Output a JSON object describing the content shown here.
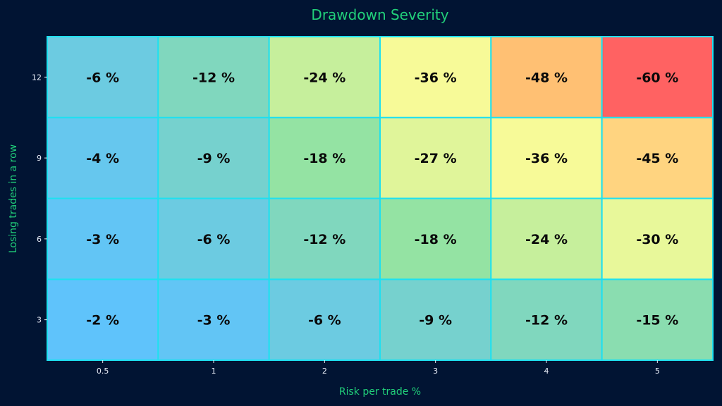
{
  "chart_data": {
    "type": "heatmap",
    "title": "Drawdown Severity",
    "xlabel": "Risk per trade %",
    "ylabel": "Losing trades in a row",
    "x": [
      "0.5",
      "1",
      "2",
      "3",
      "4",
      "5"
    ],
    "y": [
      "3",
      "6",
      "9",
      "12"
    ],
    "values": [
      [
        -2,
        -3,
        -6,
        -9,
        -12,
        -15
      ],
      [
        -3,
        -6,
        -12,
        -18,
        -24,
        -30
      ],
      [
        -4,
        -9,
        -18,
        -27,
        -36,
        -45
      ],
      [
        -6,
        -12,
        -24,
        -36,
        -48,
        -60
      ]
    ],
    "cell_labels": [
      [
        "-2 %",
        "-3 %",
        "-6 %",
        "-9 %",
        "-12 %",
        "-15 %"
      ],
      [
        "-3 %",
        "-6 %",
        "-12 %",
        "-18 %",
        "-24 %",
        "-30 %"
      ],
      [
        "-4 %",
        "-9 %",
        "-18 %",
        "-27 %",
        "-36 %",
        "-45 %"
      ],
      [
        "-6 %",
        "-12 %",
        "-24 %",
        "-36 %",
        "-48 %",
        "-60 %"
      ]
    ],
    "colors": {
      "background": "#011433",
      "accent": "#21d07a",
      "cell_border": "#1ee0f0",
      "scale": [
        "#5fc3fb",
        "#7ad4c6",
        "#96e4a0",
        "#e0f59a",
        "#f6fd9a",
        "#ffdf86",
        "#ffa764",
        "#ff6262"
      ]
    }
  }
}
